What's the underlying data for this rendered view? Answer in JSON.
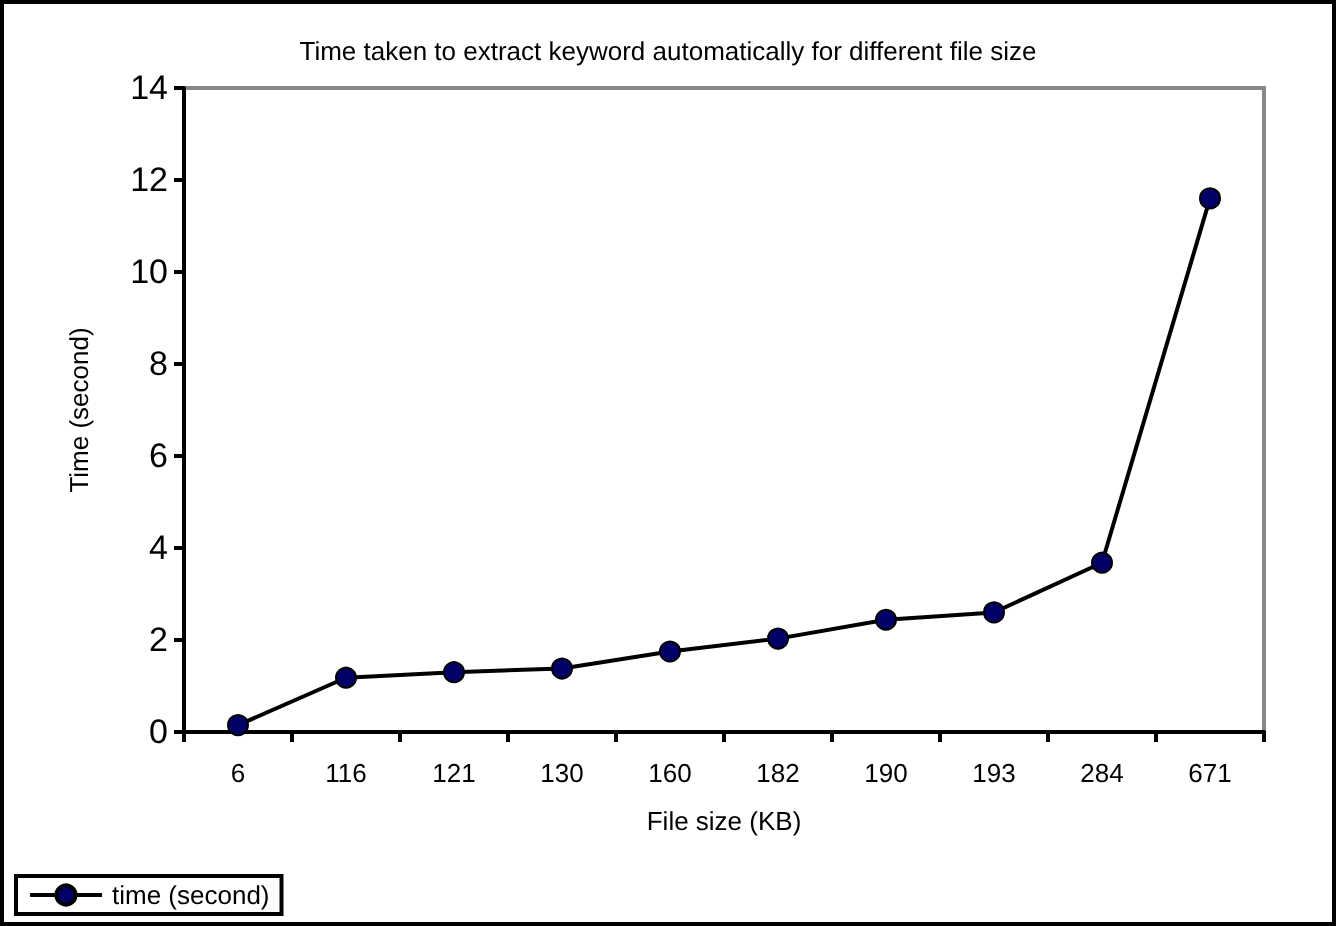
{
  "chart_data": {
    "type": "line",
    "title": "Time taken to extract keyword automatically for different file size",
    "xlabel": "File size (KB)",
    "ylabel": "Time (second)",
    "categories": [
      "6",
      "116",
      "121",
      "130",
      "160",
      "182",
      "190",
      "193",
      "284",
      "671"
    ],
    "series": [
      {
        "name": "time (second)",
        "color": "#000066",
        "values": [
          0.15,
          1.18,
          1.3,
          1.38,
          1.75,
          2.03,
          2.44,
          2.6,
          3.68,
          11.6
        ]
      }
    ],
    "ylim": [
      0,
      14
    ],
    "yticks": [
      0,
      2,
      4,
      6,
      8,
      10,
      12,
      14
    ],
    "grid": false,
    "legend": "bottom left",
    "marker": "circle",
    "line_style": "solid"
  }
}
